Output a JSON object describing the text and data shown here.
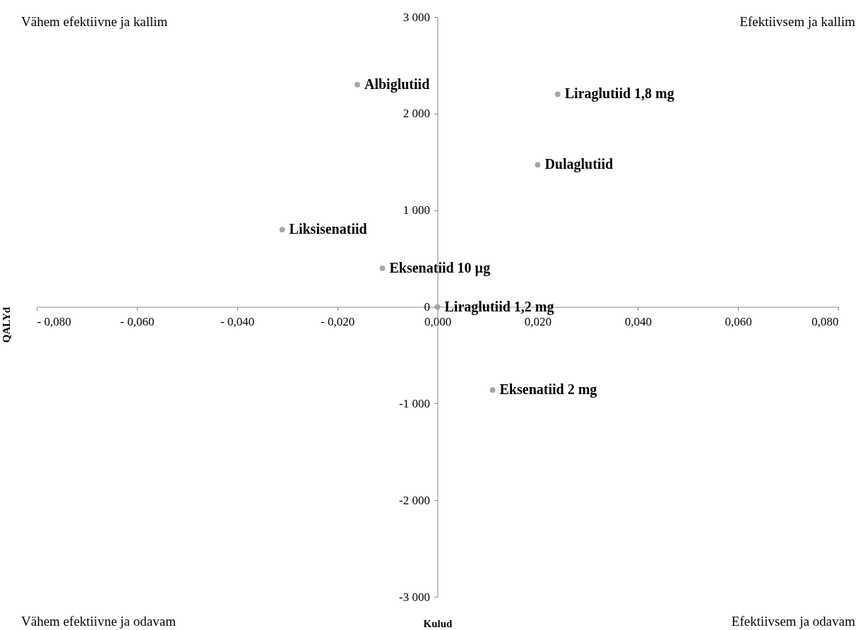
{
  "chart_data": {
    "type": "scatter",
    "xlabel": "Kulud",
    "ylabel": "QALYd",
    "annotations": [
      "Vähem efektiivne ja kallim",
      "Efektiivsem ja kallim",
      "Vähem efektiivne ja odavam",
      "Efektiivsem ja odavam"
    ],
    "series": [
      {
        "name": "Albiglutiid",
        "color": "#a6a6a6",
        "x": [
          -0.016
        ],
        "values": [
          2300
        ]
      },
      {
        "name": "Liraglutiid 1,8 mg",
        "color": "#a6a6a6",
        "x": [
          0.024
        ],
        "values": [
          2200
        ]
      },
      {
        "name": "Dulaglutiid",
        "color": "#a6a6a6",
        "x": [
          0.02
        ],
        "values": [
          1470
        ]
      },
      {
        "name": "Liksisenatiid",
        "color": "#a6a6a6",
        "x": [
          -0.031
        ],
        "values": [
          800
        ]
      },
      {
        "name": "Eksenatiid 10 µg",
        "color": "#a6a6a6",
        "x": [
          -0.011
        ],
        "values": [
          400
        ]
      },
      {
        "name": "Liraglutiid 1,2 mg",
        "color": "#a6a6a6",
        "x": [
          0
        ],
        "values": [
          0
        ]
      },
      {
        "name": "Eksenatiid 2 mg",
        "color": "#a6a6a6",
        "x": [
          0.011
        ],
        "values": [
          -860
        ]
      }
    ],
    "xlim": [
      -0.08,
      0.08
    ],
    "xticks": [
      {
        "value": -0.08,
        "label": "- 0,080"
      },
      {
        "value": -0.06,
        "label": "- 0,060"
      },
      {
        "value": -0.04,
        "label": "- 0,040"
      },
      {
        "value": -0.02,
        "label": "- 0,020"
      },
      {
        "value": 0,
        "label": "0,000"
      },
      {
        "value": 0.02,
        "label": "0,020"
      },
      {
        "value": 0.04,
        "label": "0,040"
      },
      {
        "value": 0.06,
        "label": "0,060"
      },
      {
        "value": 0.08,
        "label": "0,080"
      }
    ],
    "ylim": [
      -3000,
      3000
    ],
    "yticks": [
      {
        "value": -3000,
        "label": "-3 000"
      },
      {
        "value": -2000,
        "label": "-2 000"
      },
      {
        "value": -1000,
        "label": "-1 000"
      },
      0,
      {
        "value": 1000,
        "label": "1 000"
      },
      {
        "value": 2000,
        "label": "2 000"
      },
      {
        "value": 3000,
        "label": "3 000"
      }
    ],
    "marker": "circle",
    "grid": false,
    "legend": false
  }
}
